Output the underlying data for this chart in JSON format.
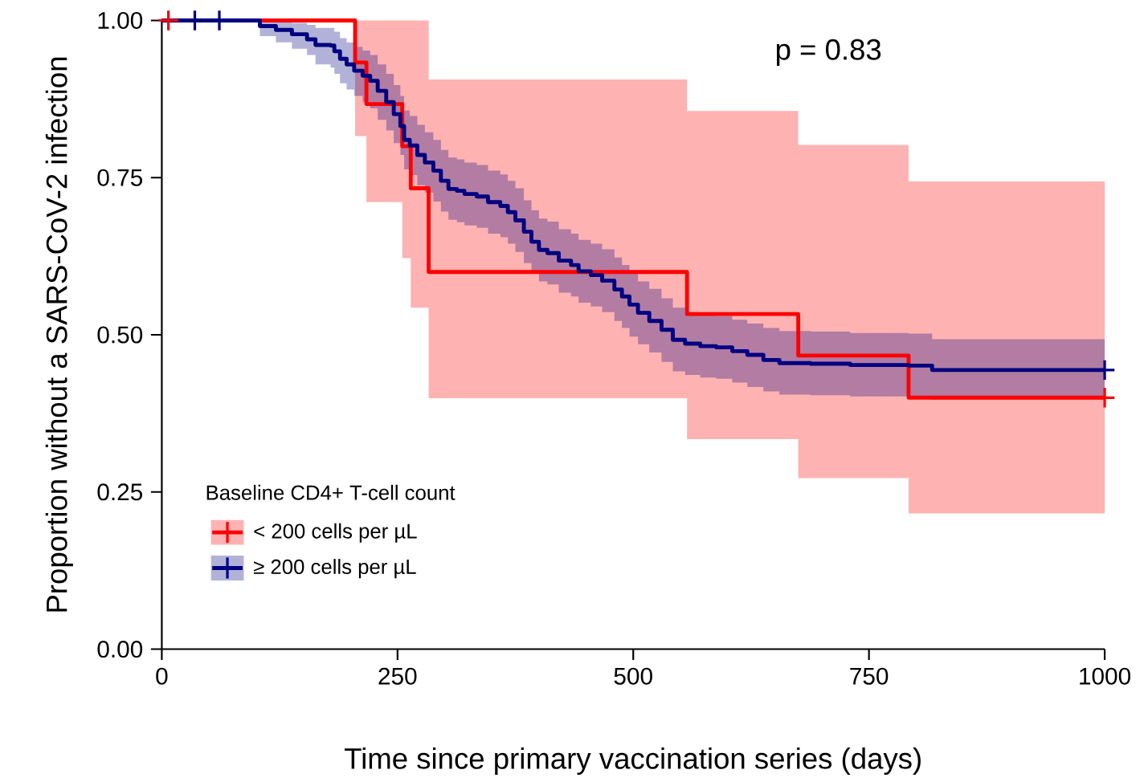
{
  "chart_data": {
    "type": "step",
    "xlabel": "Time since primary vaccination series (days)",
    "ylabel": "Proportion without a SARS-CoV-2 infection",
    "legend_title": "Baseline CD4+ T-cell count",
    "legend": "bottom left",
    "annotations": [
      "p = 0.83"
    ],
    "xlim": [
      0,
      1000
    ],
    "xticks": [
      0,
      250,
      500,
      750,
      1000
    ],
    "ylim": [
      0,
      1
    ],
    "yticks": [
      {
        "value": 0,
        "label": "0.00"
      },
      {
        "value": 0.25,
        "label": "0.25"
      },
      {
        "value": 0.5,
        "label": "0.50"
      },
      {
        "value": 0.75,
        "label": "0.75"
      },
      {
        "value": 1,
        "label": "1.00"
      }
    ],
    "series": [
      {
        "name": "< 200 cells per µL",
        "color": "#ff0000",
        "x": [
          0,
          205,
          217,
          255,
          264,
          283,
          557,
          675,
          792,
          1000
        ],
        "values": [
          1,
          0.933,
          0.867,
          0.8,
          0.733,
          0.6,
          0.533,
          0.467,
          0.4,
          0.4
        ],
        "lower": [
          1,
          0.816,
          0.711,
          0.622,
          0.543,
          0.399,
          0.334,
          0.272,
          0.216,
          0.216
        ],
        "upper": [
          1,
          1,
          1,
          1,
          1,
          0.906,
          0.856,
          0.802,
          0.744,
          0.744
        ]
      },
      {
        "name": "≥ 200 cells per µL",
        "color": "#000080",
        "x": [
          0,
          104,
          121,
          138,
          154,
          163,
          179,
          183,
          189,
          196,
          204,
          213,
          221,
          229,
          238,
          246,
          253,
          257,
          263,
          271,
          279,
          288,
          296,
          304,
          313,
          321,
          334,
          346,
          359,
          367,
          375,
          384,
          392,
          400,
          409,
          421,
          434,
          442,
          455,
          467,
          480,
          488,
          496,
          505,
          517,
          530,
          542,
          555,
          571,
          588,
          605,
          621,
          638,
          655,
          688,
          730,
          792,
          817,
          1000
        ],
        "values": [
          1,
          0.991,
          0.985,
          0.978,
          0.97,
          0.961,
          0.96,
          0.951,
          0.939,
          0.93,
          0.92,
          0.912,
          0.904,
          0.888,
          0.87,
          0.851,
          0.832,
          0.81,
          0.801,
          0.786,
          0.774,
          0.761,
          0.745,
          0.732,
          0.729,
          0.724,
          0.72,
          0.711,
          0.705,
          0.695,
          0.682,
          0.664,
          0.648,
          0.635,
          0.63,
          0.618,
          0.611,
          0.601,
          0.595,
          0.586,
          0.572,
          0.561,
          0.548,
          0.535,
          0.522,
          0.508,
          0.492,
          0.486,
          0.482,
          0.48,
          0.474,
          0.468,
          0.46,
          0.455,
          0.454,
          0.452,
          0.451,
          0.444,
          0.444
        ],
        "lower": [
          1,
          0.975,
          0.965,
          0.955,
          0.945,
          0.93,
          0.925,
          0.915,
          0.9,
          0.89,
          0.88,
          0.87,
          0.86,
          0.842,
          0.825,
          0.805,
          0.786,
          0.763,
          0.754,
          0.738,
          0.726,
          0.712,
          0.696,
          0.683,
          0.679,
          0.674,
          0.67,
          0.661,
          0.655,
          0.645,
          0.632,
          0.614,
          0.597,
          0.585,
          0.58,
          0.567,
          0.561,
          0.551,
          0.545,
          0.536,
          0.522,
          0.511,
          0.497,
          0.485,
          0.472,
          0.457,
          0.442,
          0.436,
          0.432,
          0.43,
          0.424,
          0.417,
          0.41,
          0.405,
          0.404,
          0.402,
          0.401,
          0.397,
          0.397
        ],
        "upper": [
          1,
          0.999,
          0.998,
          0.996,
          0.993,
          0.988,
          0.988,
          0.982,
          0.972,
          0.965,
          0.958,
          0.952,
          0.945,
          0.93,
          0.915,
          0.897,
          0.88,
          0.857,
          0.848,
          0.834,
          0.822,
          0.81,
          0.794,
          0.782,
          0.779,
          0.774,
          0.77,
          0.761,
          0.755,
          0.745,
          0.733,
          0.714,
          0.698,
          0.685,
          0.68,
          0.668,
          0.661,
          0.651,
          0.645,
          0.636,
          0.623,
          0.611,
          0.598,
          0.585,
          0.573,
          0.558,
          0.543,
          0.536,
          0.533,
          0.53,
          0.524,
          0.518,
          0.511,
          0.506,
          0.505,
          0.503,
          0.502,
          0.493,
          0.493
        ]
      },
      {
        "type": "scatter",
        "marker": "cross",
        "color": "#ff0000",
        "x": [
          7,
          1000
        ],
        "values": [
          1,
          0.4
        ]
      },
      {
        "type": "scatter",
        "marker": "cross",
        "color": "#000080",
        "x": [
          35,
          61,
          1000
        ],
        "values": [
          1,
          1,
          0.444
        ]
      }
    ]
  }
}
